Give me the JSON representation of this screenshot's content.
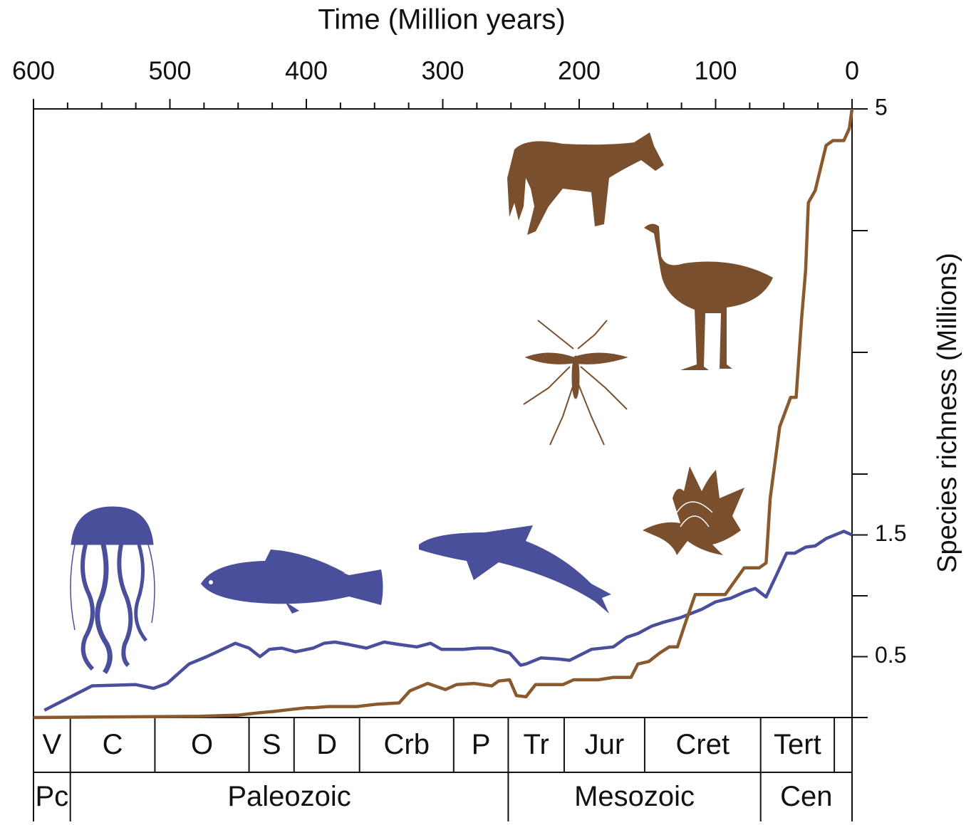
{
  "chart_data": {
    "type": "line",
    "title": "Time (Million years)",
    "y_label": "Species richness (Millions)",
    "xlim": [
      600,
      0
    ],
    "xticks": [
      600,
      500,
      400,
      300,
      200,
      100,
      0
    ],
    "xminorticks": [
      575,
      550,
      525,
      475,
      450,
      425,
      375,
      350,
      325,
      275,
      250,
      225,
      175,
      150,
      125,
      75,
      50,
      25
    ],
    "ylim": [
      0,
      5
    ],
    "yticks": [
      5,
      1.5,
      0.5
    ],
    "yminorticks": [
      4,
      3,
      2,
      1
    ],
    "series": [
      {
        "color": "#4a4f9c",
        "x": [
          592,
          557,
          525,
          512,
          502,
          486,
          473,
          452,
          442,
          434,
          427,
          418,
          408,
          395,
          387,
          379,
          369,
          356,
          343,
          332,
          319,
          309,
          301,
          285,
          275,
          264,
          251,
          243,
          239,
          228,
          215,
          207,
          191,
          175,
          165,
          157,
          147,
          139,
          126,
          110,
          100,
          89,
          79,
          71,
          63,
          55,
          48,
          42,
          34,
          27,
          19,
          6,
          0
        ],
        "values": [
          0.06,
          0.26,
          0.27,
          0.24,
          0.28,
          0.44,
          0.5,
          0.61,
          0.57,
          0.5,
          0.56,
          0.57,
          0.54,
          0.57,
          0.61,
          0.62,
          0.6,
          0.57,
          0.62,
          0.6,
          0.58,
          0.61,
          0.56,
          0.56,
          0.57,
          0.57,
          0.53,
          0.43,
          0.44,
          0.49,
          0.48,
          0.47,
          0.56,
          0.58,
          0.66,
          0.69,
          0.75,
          0.78,
          0.82,
          0.89,
          0.95,
          0.98,
          1.03,
          1.06,
          0.99,
          1.18,
          1.35,
          1.35,
          1.4,
          1.41,
          1.47,
          1.53,
          1.5
        ]
      },
      {
        "color": "#8a5a2e",
        "x": [
          600,
          478,
          450,
          434,
          424,
          416,
          400,
          395,
          384,
          363,
          348,
          332,
          324,
          311,
          298,
          290,
          277,
          264,
          259,
          251,
          246,
          239,
          232,
          212,
          204,
          186,
          175,
          162,
          157,
          149,
          141,
          134,
          128,
          123,
          115,
          93,
          79,
          68,
          63,
          60,
          53,
          45,
          41,
          37,
          34,
          32,
          27,
          19,
          14,
          6,
          2,
          0
        ],
        "values": [
          0,
          0.01,
          0.02,
          0.04,
          0.05,
          0.06,
          0.08,
          0.08,
          0.09,
          0.09,
          0.11,
          0.12,
          0.22,
          0.28,
          0.23,
          0.27,
          0.28,
          0.26,
          0.3,
          0.31,
          0.18,
          0.17,
          0.27,
          0.27,
          0.31,
          0.31,
          0.33,
          0.33,
          0.44,
          0.46,
          0.53,
          0.58,
          0.58,
          0.75,
          1.01,
          1.01,
          1.23,
          1.23,
          1.27,
          1.8,
          2.39,
          2.63,
          2.63,
          3.27,
          3.68,
          4.23,
          4.33,
          4.7,
          4.74,
          4.74,
          4.84,
          5
        ]
      }
    ],
    "periods": {
      "labels": [
        "V",
        "C",
        "O",
        "S",
        "D",
        "Crb",
        "P",
        "Tr",
        "Jur",
        "Cret",
        "Tert",
        null
      ],
      "bounds": [
        600,
        573,
        511,
        442,
        409,
        361,
        292,
        252,
        211,
        152,
        67,
        13,
        0
      ]
    },
    "eras": {
      "labels": [
        "Pc",
        "Paleozoic",
        "Mesozoic",
        "Cen"
      ],
      "bounds": [
        600,
        573,
        252,
        67,
        0
      ]
    }
  }
}
